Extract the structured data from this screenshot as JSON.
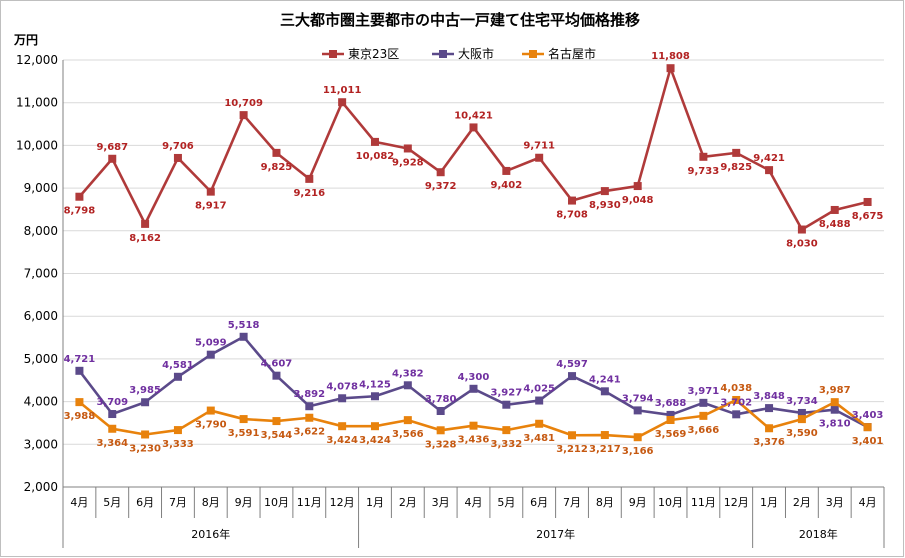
{
  "chart_data": {
    "type": "line",
    "title": "三大都市圏主要都市の中古一戸建て住宅平均価格推移",
    "ylabel": "万円",
    "ylim": [
      2000,
      12000
    ],
    "yticks": [
      "2,000",
      "3,000",
      "4,000",
      "5,000",
      "6,000",
      "7,000",
      "8,000",
      "9,000",
      "10,000",
      "11,000",
      "12,000"
    ],
    "categories": [
      "4月",
      "5月",
      "6月",
      "7月",
      "8月",
      "9月",
      "10月",
      "11月",
      "12月",
      "1月",
      "2月",
      "3月",
      "4月",
      "5月",
      "6月",
      "7月",
      "8月",
      "9月",
      "10月",
      "11月",
      "12月",
      "1月",
      "2月",
      "3月",
      "4月"
    ],
    "years": [
      {
        "label": "2016年",
        "start": 0,
        "end": 8
      },
      {
        "label": "2017年",
        "start": 9,
        "end": 20
      },
      {
        "label": "2018年",
        "start": 21,
        "end": 24
      }
    ],
    "series": [
      {
        "name": "東京23区",
        "color": "#b03a3a",
        "label_color": "#b22222",
        "values": [
          8798,
          9687,
          8162,
          9706,
          8917,
          10709,
          9825,
          9216,
          11011,
          10082,
          9928,
          9372,
          10421,
          9402,
          9711,
          8708,
          8930,
          9048,
          11808,
          9733,
          9825,
          9421,
          8030,
          8488,
          8675
        ],
        "labels": [
          "8,798",
          "9,687",
          "8,162",
          "9,706",
          "8,917",
          "10,709",
          "9,825",
          "9,216",
          "11,011",
          "10,082",
          "9,928",
          "9,372",
          "10,421",
          "9,402",
          "9,711",
          "8,708",
          "8,930",
          "9,048",
          "11,808",
          "9,733",
          "9,825",
          "9,421",
          "8,030",
          "8,488",
          "8,675"
        ]
      },
      {
        "name": "大阪市",
        "color": "#5b4a8a",
        "label_color": "#7030a0",
        "values": [
          4721,
          3709,
          3985,
          4581,
          5099,
          5518,
          4607,
          3892,
          4078,
          4125,
          4382,
          3780,
          4300,
          3927,
          4025,
          4597,
          4241,
          3794,
          3688,
          3971,
          3702,
          3848,
          3734,
          3810,
          3403
        ],
        "labels": [
          "4,721",
          "3,709",
          "3,985",
          "4,581",
          "5,099",
          "5,518",
          "4,607",
          "3,892",
          "4,078",
          "4,125",
          "4,382",
          "3,780",
          "4,300",
          "3,927",
          "4,025",
          "4,597",
          "4,241",
          "3,794",
          "3,688",
          "3,971",
          "3,702",
          "3,848",
          "3,734",
          "3,810",
          "3,403"
        ]
      },
      {
        "name": "名古屋市",
        "color": "#e8820c",
        "label_color": "#c65911",
        "values": [
          3988,
          3364,
          3230,
          3333,
          3790,
          3591,
          3544,
          3622,
          3424,
          3424,
          3566,
          3328,
          3436,
          3332,
          3481,
          3212,
          3217,
          3166,
          3569,
          3666,
          4038,
          3376,
          3590,
          3987,
          3401
        ],
        "labels": [
          "3,988",
          "3,364",
          "3,230",
          "3,333",
          "3,790",
          "3,591",
          "3,544",
          "3,622",
          "3,424",
          "3,424",
          "3,566",
          "3,328",
          "3,436",
          "3,332",
          "3,481",
          "3,212",
          "3,217",
          "3,166",
          "3,569",
          "3,666",
          "4,038",
          "3,376",
          "3,590",
          "3,987",
          "3,401"
        ]
      }
    ],
    "grid": true,
    "legend": "top-center"
  }
}
